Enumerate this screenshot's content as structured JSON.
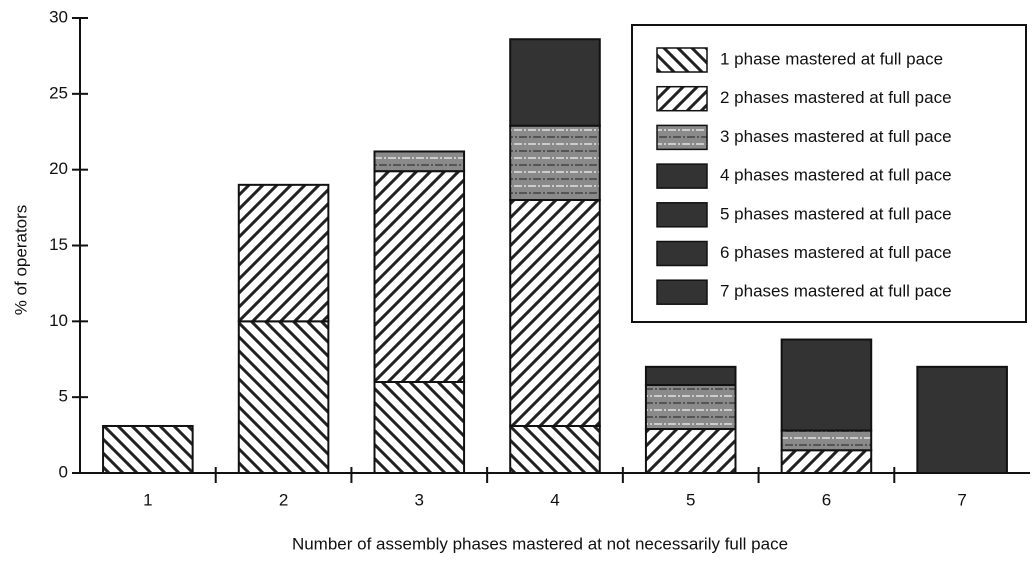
{
  "chart_data": {
    "type": "stacked-bar",
    "xlabel": "Number of assembly phases mastered at not necessarily  full pace",
    "ylabel": "% of operators",
    "categories": [
      "1",
      "2",
      "3",
      "4",
      "5",
      "6",
      "7"
    ],
    "ylim": [
      0,
      30
    ],
    "yticks": [
      0,
      5,
      10,
      15,
      20,
      25,
      30
    ],
    "grid": false,
    "legend": "upper right",
    "series": [
      {
        "name": "1 phase mastered at full pace",
        "color": "#222222",
        "pattern": "back-hatch",
        "values": [
          3.1,
          10,
          6.0,
          3.1,
          null,
          null,
          null
        ]
      },
      {
        "name": "2 phases mastered at full pace",
        "color": "#222222",
        "pattern": "hatch",
        "values": [
          null,
          9,
          13.9,
          14.9,
          2.9,
          1.5,
          null
        ]
      },
      {
        "name": "3 phases mastered at full pace",
        "color": "#8a8a8a",
        "pattern": "stipple",
        "values": [
          null,
          null,
          1.3,
          4.9,
          2.9,
          1.3,
          null
        ]
      },
      {
        "name": "4 phases mastered at full pace",
        "color": "#333333",
        "pattern": "solid",
        "values": [
          null,
          null,
          null,
          5.7,
          null,
          null,
          null
        ]
      },
      {
        "name": "5 phases mastered at full pace",
        "color": "#333333",
        "pattern": "solid",
        "values": [
          null,
          null,
          null,
          null,
          1.2,
          null,
          null
        ]
      },
      {
        "name": "6 phases mastered at full pace",
        "color": "#333333",
        "pattern": "solid",
        "values": [
          null,
          null,
          null,
          null,
          null,
          6.0,
          null
        ]
      },
      {
        "name": "7 phases mastered at full pace",
        "color": "#333333",
        "pattern": "solid",
        "values": [
          null,
          null,
          null,
          null,
          null,
          null,
          7.0
        ]
      }
    ]
  }
}
